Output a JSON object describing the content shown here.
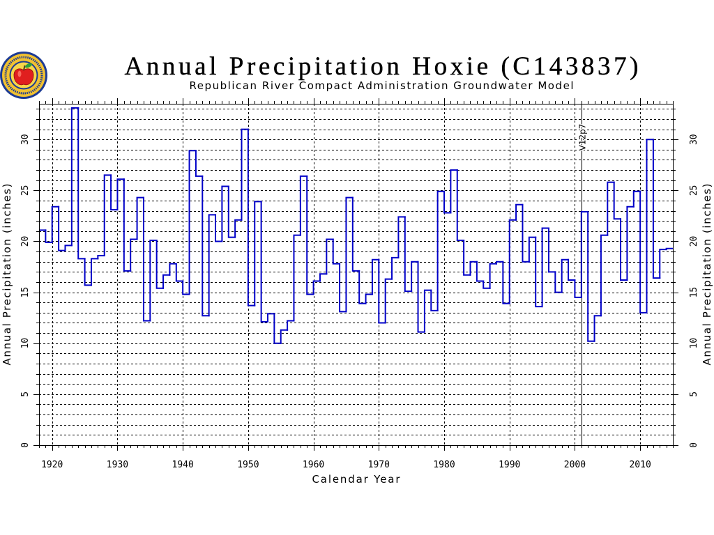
{
  "logo": {
    "icon": "apple-seal-icon"
  },
  "chart_data": {
    "type": "line",
    "drawstyle": "steps",
    "title": "Annual Precipitation Hoxie (C143837)",
    "subtitle": "Republican River Compact Administration Groundwater Model",
    "xlabel": "Calendar Year",
    "ylabel": "Annual Precipitation (inches)",
    "xlim": [
      1918,
      2015
    ],
    "ylim": [
      0,
      33.5
    ],
    "x_ticks": [
      1920,
      1930,
      1940,
      1950,
      1960,
      1970,
      1980,
      1990,
      2000,
      2010
    ],
    "y_ticks": [
      0,
      5,
      10,
      15,
      20,
      25,
      30
    ],
    "grid": true,
    "series": [
      {
        "color": "#0000c8",
        "x": [
          1918,
          1919,
          1920,
          1921,
          1922,
          1923,
          1924,
          1925,
          1926,
          1927,
          1928,
          1929,
          1930,
          1931,
          1932,
          1933,
          1934,
          1935,
          1936,
          1937,
          1938,
          1939,
          1940,
          1941,
          1942,
          1943,
          1944,
          1945,
          1946,
          1947,
          1948,
          1949,
          1950,
          1951,
          1952,
          1953,
          1954,
          1955,
          1956,
          1957,
          1958,
          1959,
          1960,
          1961,
          1962,
          1963,
          1964,
          1965,
          1966,
          1967,
          1968,
          1969,
          1970,
          1971,
          1972,
          1973,
          1974,
          1975,
          1976,
          1977,
          1978,
          1979,
          1980,
          1981,
          1982,
          1983,
          1984,
          1985,
          1986,
          1987,
          1988,
          1989,
          1990,
          1991,
          1992,
          1993,
          1994,
          1995,
          1996,
          1997,
          1998,
          1999,
          2000,
          2001,
          2002,
          2003,
          2004,
          2005,
          2006,
          2007,
          2008,
          2009,
          2010,
          2011,
          2012,
          2013,
          2014
        ],
        "values": [
          21.1,
          19.9,
          23.4,
          19.1,
          19.6,
          33.1,
          18.3,
          15.7,
          18.3,
          18.6,
          26.5,
          23.1,
          26.1,
          17.1,
          20.2,
          24.3,
          12.2,
          20.1,
          15.4,
          16.7,
          17.8,
          16.1,
          14.8,
          28.9,
          26.4,
          12.7,
          22.6,
          20.0,
          25.4,
          20.4,
          22.1,
          31.0,
          13.7,
          23.9,
          12.1,
          12.9,
          10.0,
          11.3,
          12.2,
          20.6,
          26.4,
          14.8,
          16.1,
          16.8,
          20.2,
          17.8,
          13.1,
          24.3,
          17.1,
          13.9,
          14.8,
          18.2,
          12.0,
          16.3,
          18.4,
          22.4,
          15.1,
          18.0,
          11.1,
          15.2,
          13.2,
          24.9,
          22.8,
          27.0,
          20.1,
          16.7,
          18.0,
          16.1,
          15.4,
          17.8,
          18.0,
          13.9,
          22.1,
          23.6,
          18.0,
          20.4,
          13.6,
          21.3,
          17.0,
          15.0,
          18.2,
          16.2,
          14.5,
          22.9,
          10.2,
          12.7,
          20.6,
          25.8,
          22.2,
          16.2,
          23.4,
          24.9,
          13.0,
          30.0,
          16.4,
          19.2,
          19.3
        ]
      }
    ],
    "annotations": [
      {
        "type": "vline",
        "x": 2001,
        "label": "V12p7",
        "color": "#000000"
      }
    ]
  }
}
